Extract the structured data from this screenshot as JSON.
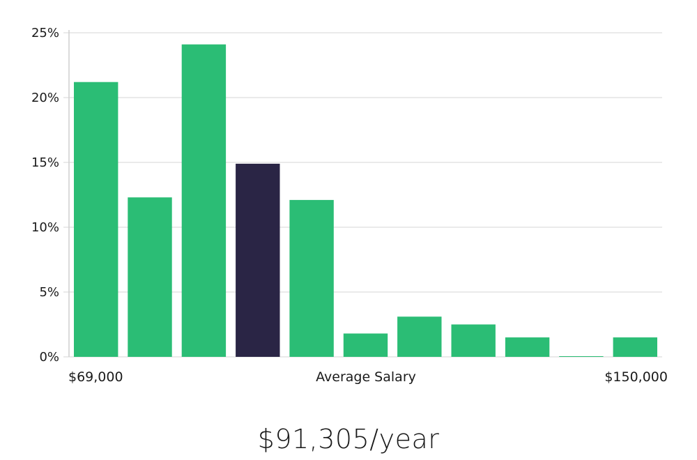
{
  "colors": {
    "bar": "#2bbd75",
    "highlight": "#2a2545",
    "grid": "#e3e3e3",
    "axis": "#cfcfcf"
  },
  "salary_summary": "$91,305/year",
  "chart_data": {
    "type": "bar",
    "title": "",
    "xlabel": "Average Salary",
    "ylabel": "",
    "x_min_label": "$69,000",
    "x_max_label": "$150,000",
    "values": [
      21.2,
      12.3,
      24.1,
      14.9,
      12.1,
      1.8,
      3.1,
      2.5,
      1.5,
      0.05,
      1.5
    ],
    "highlight_index": 3,
    "ylim": [
      0,
      25
    ],
    "yticks": [
      {
        "value": 0,
        "label": "0%"
      },
      {
        "value": 5,
        "label": "5%"
      },
      {
        "value": 10,
        "label": "10%"
      },
      {
        "value": 15,
        "label": "15%"
      },
      {
        "value": 20,
        "label": "20%"
      },
      {
        "value": 25,
        "label": "25%"
      }
    ],
    "grid": true,
    "legend": "none"
  }
}
